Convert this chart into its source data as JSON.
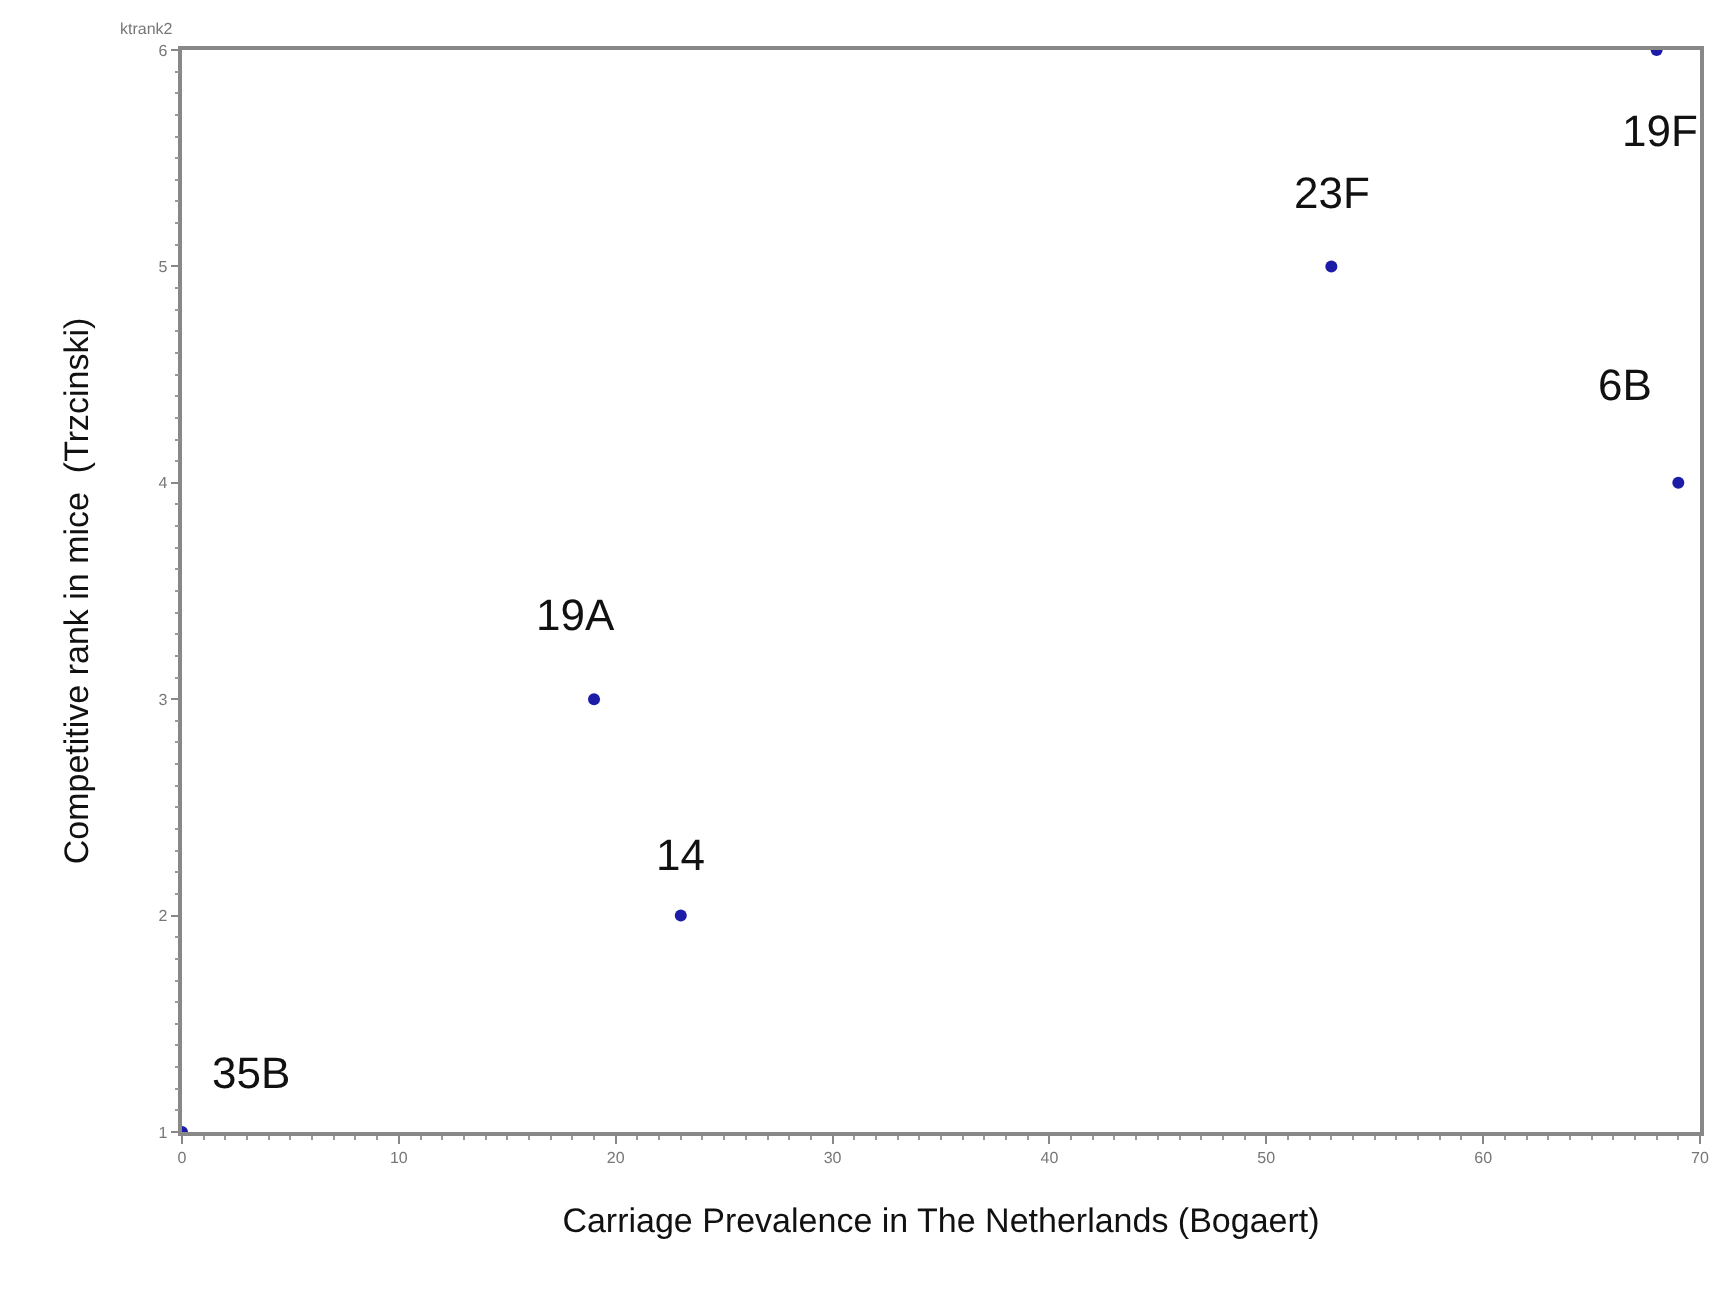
{
  "chart_data": {
    "type": "scatter",
    "xlabel": "Carriage Prevalence in The Netherlands (Bogaert)",
    "ylabel": "Competitive rank in mice  (Trzcinski)",
    "x": [
      0,
      19,
      23,
      53,
      68,
      69
    ],
    "series": [
      {
        "color": "#1c1ca8",
        "values": [
          1,
          3,
          2,
          5,
          6,
          4
        ]
      }
    ],
    "xlim": [
      0,
      70
    ],
    "xticks": [
      0,
      10,
      20,
      30,
      40,
      50,
      60,
      70
    ],
    "ylim": [
      1,
      6
    ],
    "yticks": [
      1,
      2,
      3,
      4,
      5,
      6
    ],
    "marker": "circle",
    "annotations": [
      "ktrank2",
      {
        "text": "35B",
        "x": 0,
        "y": 1
      },
      {
        "text": "19A",
        "x": 19,
        "y": 3
      },
      {
        "text": "14",
        "x": 23,
        "y": 2
      },
      {
        "text": "23F",
        "x": 53,
        "y": 5
      },
      {
        "text": "19F",
        "x": 68,
        "y": 6
      },
      {
        "text": "6B",
        "x": 69,
        "y": 4
      }
    ]
  }
}
